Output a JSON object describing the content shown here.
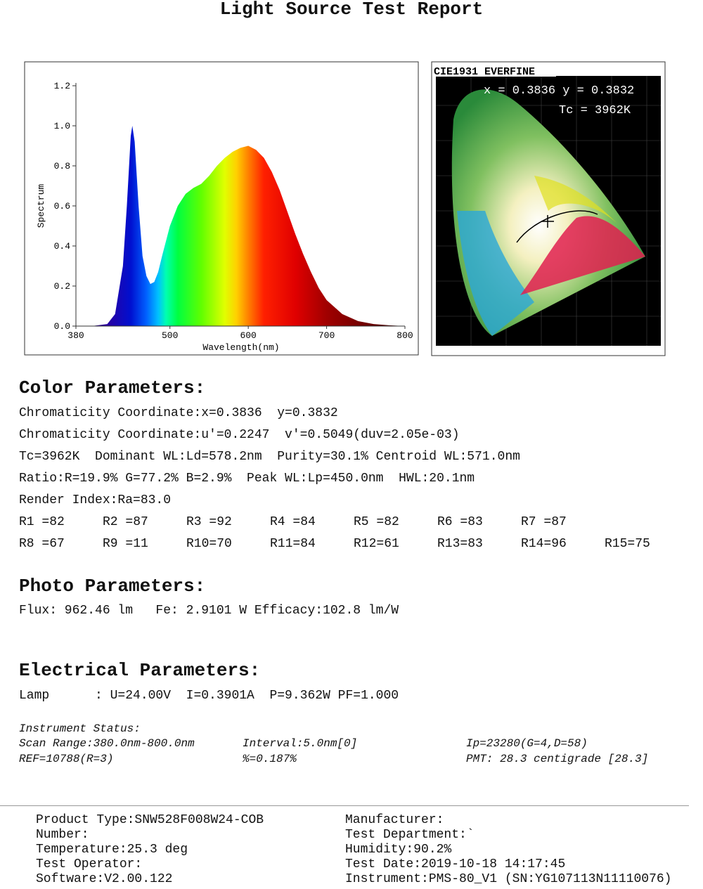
{
  "title": "Light Source Test Report",
  "chart_data": {
    "type": "area",
    "ylabel": "Spectrum",
    "xlabel": "Wavelength(nm)",
    "x": [
      380,
      400,
      420,
      430,
      440,
      445,
      450,
      452,
      455,
      460,
      465,
      470,
      475,
      480,
      485,
      490,
      500,
      510,
      520,
      530,
      540,
      550,
      560,
      570,
      580,
      590,
      600,
      610,
      620,
      630,
      640,
      650,
      660,
      670,
      680,
      690,
      700,
      720,
      740,
      760,
      780,
      800
    ],
    "values": [
      0,
      0,
      0.01,
      0.06,
      0.3,
      0.6,
      0.95,
      1.0,
      0.92,
      0.6,
      0.35,
      0.25,
      0.21,
      0.22,
      0.27,
      0.35,
      0.5,
      0.6,
      0.66,
      0.69,
      0.71,
      0.75,
      0.8,
      0.84,
      0.87,
      0.89,
      0.9,
      0.88,
      0.84,
      0.77,
      0.68,
      0.57,
      0.46,
      0.36,
      0.27,
      0.19,
      0.13,
      0.06,
      0.025,
      0.01,
      0.004,
      0
    ],
    "xlim": [
      380,
      800
    ],
    "ylim": [
      0,
      1.2
    ],
    "xticks": [
      380,
      500,
      600,
      700,
      800
    ],
    "yticks": [
      {
        "value": 0,
        "label": "0.0"
      },
      0.2,
      0.4,
      0.6,
      0.8,
      {
        "value": 1,
        "label": "1.0"
      },
      1.2
    ]
  },
  "cie": {
    "title": "CIE1931 EVERFINE",
    "coords": "x = 0.3836 y = 0.3832",
    "tc": "Tc = 3962K"
  },
  "color_parameters": {
    "heading": "Color Parameters:",
    "lines": [
      "Chromaticity Coordinate:x=0.3836  y=0.3832",
      "Chromaticity Coordinate:u'=0.2247  v'=0.5049(duv=2.05e-03)",
      "Tc=3962K  Dominant WL:Ld=578.2nm  Purity=30.1% Centroid WL:571.0nm",
      "Ratio:R=19.9% G=77.2% B=2.9%  Peak WL:Lp=450.0nm  HWL:20.1nm",
      "Render Index:Ra=83.0"
    ],
    "render_row1": [
      "R1 =82",
      "R2 =87",
      "R3 =92",
      "R4 =84",
      "R5 =82",
      "R6 =83",
      "R7 =87"
    ],
    "render_row2": [
      "R8 =67",
      "R9 =11",
      "R10=70",
      "R11=84",
      "R12=61",
      "R13=83",
      "R14=96",
      "R15=75"
    ]
  },
  "photo_parameters": {
    "heading": "Photo Parameters:",
    "line": "Flux: 962.46 lm   Fe: 2.9101 W Efficacy:102.8 lm/W"
  },
  "electrical_parameters": {
    "heading": "Electrical Parameters:",
    "line": "Lamp      : U=24.00V  I=0.3901A  P=9.362W PF=1.000"
  },
  "instrument_status": {
    "heading": "Instrument Status:",
    "rows": [
      [
        "Scan Range:380.0nm-800.0nm",
        "Interval:5.0nm[0]",
        "Ip=23280(G=4,D=58)"
      ],
      [
        "REF=10788(R=3)",
        "%=0.187%",
        "PMT: 28.3 centigrade [28.3]"
      ]
    ]
  },
  "footer": {
    "left": [
      "Product Type:SNW528F008W24-COB",
      "Number:",
      "Temperature:25.3 deg",
      "Test Operator:",
      "Software:V2.00.122"
    ],
    "right": [
      "Manufacturer:",
      "Test Department:`",
      "Humidity:90.2%",
      "Test Date:2019-10-18 14:17:45",
      "Instrument:PMS-80_V1 (SN:YG107113N11110076)"
    ]
  }
}
